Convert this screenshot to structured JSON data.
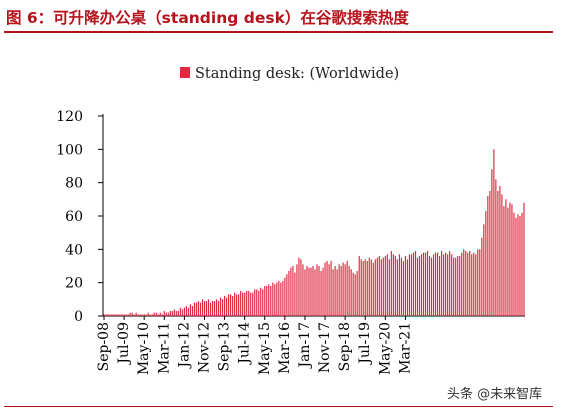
{
  "figure": {
    "title": "图 6：可升降办公桌（standing desk）在谷歌搜索热度",
    "watermark": "头条 @未来智库"
  },
  "colors": {
    "accent": "#b5121b",
    "bar": "#e0283e"
  },
  "chart_data": {
    "type": "bar",
    "title": "",
    "xlabel": "",
    "ylabel": "",
    "ylim": [
      0,
      120
    ],
    "yticks": [
      0,
      20,
      40,
      60,
      80,
      100,
      120
    ],
    "legend": "top-center",
    "grid": false,
    "x_tick_labels": [
      "Sep-08",
      "Jul-09",
      "May-10",
      "Mar-11",
      "Jan-12",
      "Nov-12",
      "Sep-13",
      "Jul-14",
      "May-15",
      "Mar-16",
      "Jan-17",
      "Nov-17",
      "Sep-18",
      "Jul-19",
      "May-20",
      "Mar-21"
    ],
    "start_month": "2008-09",
    "series": [
      {
        "name": "Standing desk: (Worldwide)",
        "values": [
          1,
          1,
          1,
          1,
          1,
          1,
          1,
          1,
          1,
          1,
          1,
          1,
          1,
          2,
          2,
          1,
          2,
          1,
          1,
          1,
          1,
          1,
          2,
          1,
          1,
          2,
          2,
          1,
          2,
          1,
          3,
          2,
          2,
          3,
          3,
          4,
          3,
          3,
          5,
          4,
          5,
          6,
          5,
          7,
          6,
          8,
          8,
          9,
          8,
          10,
          9,
          9,
          10,
          8,
          9,
          9,
          10,
          9,
          11,
          10,
          12,
          11,
          13,
          13,
          12,
          14,
          13,
          13,
          15,
          14,
          14,
          15,
          15,
          14,
          14,
          16,
          16,
          15,
          17,
          16,
          18,
          18,
          19,
          18,
          20,
          19,
          20,
          21,
          20,
          21,
          23,
          25,
          27,
          29,
          30,
          26,
          31,
          35,
          34,
          31,
          28,
          30,
          29,
          29,
          30,
          28,
          31,
          30,
          27,
          29,
          32,
          33,
          31,
          33,
          28,
          30,
          28,
          31,
          30,
          32,
          31,
          33,
          30,
          28,
          26,
          25,
          27,
          36,
          34,
          33,
          34,
          33,
          35,
          34,
          32,
          34,
          35,
          36,
          34,
          35,
          36,
          37,
          34,
          39,
          37,
          36,
          34,
          37,
          35,
          33,
          36,
          34,
          37,
          37,
          38,
          39,
          35,
          36,
          37,
          38,
          38,
          39,
          36,
          35,
          37,
          38,
          38,
          36,
          39,
          37,
          38,
          37,
          39,
          37,
          35,
          35,
          36,
          36,
          38,
          40,
          39,
          38,
          39,
          37,
          38,
          37,
          40,
          40,
          47,
          55,
          63,
          72,
          75,
          88,
          100,
          82,
          75,
          78,
          73,
          66,
          70,
          65,
          68,
          67,
          62,
          59,
          61,
          60,
          62,
          68
        ]
      }
    ]
  }
}
